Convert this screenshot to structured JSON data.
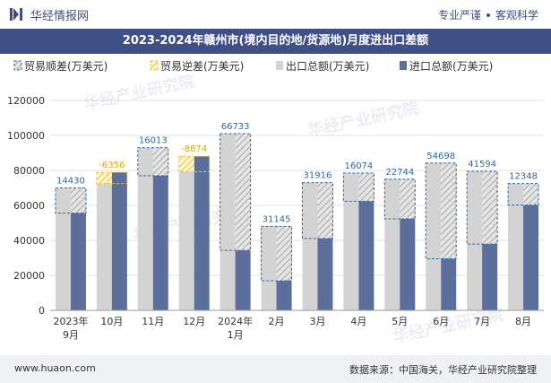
{
  "header": {
    "site_name": "华经情报网",
    "tag1": "专业严谨",
    "tag2": "客观科学"
  },
  "chart_data": {
    "type": "bar",
    "title": "2023-2024年赣州市(境内目的地/货源地)月度进出口差额",
    "categories": [
      "2023年\n9月",
      "10月",
      "11月",
      "12月",
      "2024年\n1月",
      "2月",
      "3月",
      "4月",
      "5月",
      "6月",
      "7月",
      "8月"
    ],
    "series": [
      {
        "name": "贸易顺差(万美元)",
        "values": [
          14430,
          null,
          16013,
          null,
          66733,
          31145,
          31916,
          16074,
          22744,
          54698,
          41594,
          12348
        ]
      },
      {
        "name": "贸易逆差(万美元)",
        "values": [
          null,
          -6356,
          null,
          -8874,
          null,
          null,
          null,
          null,
          null,
          null,
          null,
          null
        ]
      },
      {
        "name": "出口总额(万美元)",
        "values": [
          70000,
          72500,
          93000,
          79200,
          101000,
          48000,
          73000,
          78500,
          75000,
          84200,
          79500,
          72500
        ]
      },
      {
        "name": "进口总额(万美元)",
        "values": [
          55600,
          78900,
          77000,
          88100,
          34300,
          16900,
          41100,
          62400,
          52300,
          29500,
          37900,
          60200
        ]
      }
    ],
    "data_labels": [
      "14430",
      "-6356",
      "16013",
      "-8874",
      "66733",
      "31145",
      "31916",
      "16074",
      "22744",
      "54698",
      "41594",
      "12348"
    ],
    "ylim": [
      0,
      120000
    ],
    "yticks": [
      "0",
      "20000",
      "40000",
      "60000",
      "80000",
      "100000",
      "120000"
    ],
    "colors": {
      "surplus": "#2f6aa3",
      "deficit": "#f2c12e",
      "export": "#d3d3d3",
      "import": "#5b6e9c",
      "label_surplus": "#2f6aa3",
      "label_deficit": "#e0a800"
    },
    "watermark": "华经产业研究院"
  },
  "footer": {
    "website": "www.huaon.com",
    "source": "数据来源：中国海关，华经产业研究院整理"
  }
}
